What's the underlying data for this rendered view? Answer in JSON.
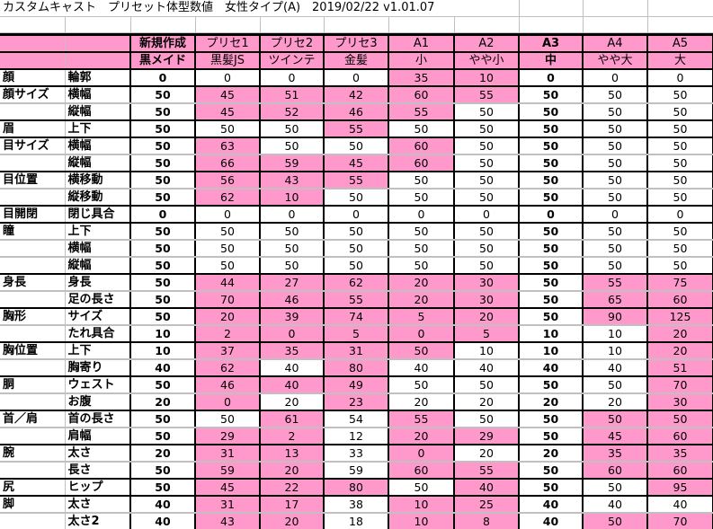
{
  "title": "カスタムキャスト　プリセット体型数値　女性タイプ(A)　2019/02/22  v1.01.07",
  "colors": {
    "highlight": "#ff99cc",
    "border": "#000000",
    "grid": "#c0c0c0"
  },
  "header": {
    "top": [
      "新規作成",
      "プリセ1",
      "プリセ2",
      "プリセ3",
      "A1",
      "A2",
      "A3",
      "A4",
      "A5"
    ],
    "sub": [
      "黒メイド",
      "黒髪JS",
      "ツインテ",
      "金髪",
      "小",
      "やや小",
      "中",
      "やや大",
      "大"
    ]
  },
  "rows": [
    {
      "group": "顔",
      "label": "輪郭",
      "values": [
        "0",
        "0",
        "0",
        "0",
        "35",
        "10",
        "0",
        "0",
        "0"
      ],
      "highlighted": [
        4,
        5
      ]
    },
    {
      "group": "顔サイズ",
      "label": "横幅",
      "values": [
        "50",
        "45",
        "51",
        "42",
        "60",
        "55",
        "50",
        "50",
        "50"
      ],
      "highlighted": [
        1,
        2,
        3,
        4,
        5
      ]
    },
    {
      "group": "",
      "label": "縦幅",
      "values": [
        "50",
        "45",
        "52",
        "46",
        "55",
        "50",
        "50",
        "50",
        "50"
      ],
      "highlighted": [
        1,
        2,
        3,
        4
      ]
    },
    {
      "group": "眉",
      "label": "上下",
      "values": [
        "50",
        "50",
        "50",
        "55",
        "50",
        "50",
        "50",
        "50",
        "50"
      ],
      "highlighted": [
        3
      ]
    },
    {
      "group": "目サイズ",
      "label": "横幅",
      "values": [
        "50",
        "63",
        "50",
        "50",
        "60",
        "50",
        "50",
        "50",
        "50"
      ],
      "highlighted": [
        1,
        4
      ]
    },
    {
      "group": "",
      "label": "縦幅",
      "values": [
        "50",
        "66",
        "59",
        "45",
        "60",
        "50",
        "50",
        "50",
        "50"
      ],
      "highlighted": [
        1,
        2,
        3,
        4
      ]
    },
    {
      "group": "目位置",
      "label": "横移動",
      "values": [
        "50",
        "56",
        "43",
        "55",
        "50",
        "50",
        "50",
        "50",
        "50"
      ],
      "highlighted": [
        1,
        2,
        3
      ]
    },
    {
      "group": "",
      "label": "縦移動",
      "values": [
        "50",
        "62",
        "10",
        "50",
        "50",
        "50",
        "50",
        "50",
        "50"
      ],
      "highlighted": [
        1,
        2
      ]
    },
    {
      "group": "目開閉",
      "label": "閉じ具合",
      "values": [
        "0",
        "0",
        "0",
        "0",
        "0",
        "0",
        "0",
        "0",
        "0"
      ],
      "highlighted": []
    },
    {
      "group": "瞳",
      "label": "上下",
      "values": [
        "50",
        "50",
        "50",
        "50",
        "50",
        "50",
        "50",
        "50",
        "50"
      ],
      "highlighted": []
    },
    {
      "group": "",
      "label": "横幅",
      "values": [
        "50",
        "50",
        "50",
        "50",
        "50",
        "50",
        "50",
        "50",
        "50"
      ],
      "highlighted": []
    },
    {
      "group": "",
      "label": "縦幅",
      "values": [
        "50",
        "50",
        "50",
        "50",
        "50",
        "50",
        "50",
        "50",
        "50"
      ],
      "highlighted": []
    },
    {
      "group": "身長",
      "label": "身長",
      "values": [
        "50",
        "44",
        "27",
        "62",
        "20",
        "30",
        "50",
        "55",
        "75"
      ],
      "highlighted": [
        1,
        2,
        3,
        4,
        5,
        7,
        8
      ]
    },
    {
      "group": "",
      "label": "足の長さ",
      "values": [
        "50",
        "70",
        "46",
        "55",
        "20",
        "30",
        "50",
        "65",
        "60"
      ],
      "highlighted": [
        1,
        2,
        3,
        4,
        5,
        7,
        8
      ]
    },
    {
      "group": "胸形",
      "label": "サイズ",
      "values": [
        "50",
        "20",
        "39",
        "74",
        "5",
        "20",
        "50",
        "90",
        "125"
      ],
      "highlighted": [
        1,
        2,
        3,
        4,
        5,
        7,
        8
      ]
    },
    {
      "group": "",
      "label": "たれ具合",
      "values": [
        "10",
        "2",
        "0",
        "5",
        "0",
        "5",
        "10",
        "10",
        "20"
      ],
      "highlighted": [
        1,
        2,
        3,
        4,
        5,
        8
      ]
    },
    {
      "group": "胸位置",
      "label": "上下",
      "values": [
        "10",
        "37",
        "35",
        "31",
        "50",
        "10",
        "10",
        "10",
        "20"
      ],
      "highlighted": [
        1,
        2,
        3,
        4,
        8
      ]
    },
    {
      "group": "",
      "label": "胸寄り",
      "values": [
        "40",
        "62",
        "40",
        "80",
        "40",
        "40",
        "40",
        "40",
        "51"
      ],
      "highlighted": [
        1,
        3,
        8
      ]
    },
    {
      "group": "胴",
      "label": "ウェスト",
      "values": [
        "50",
        "46",
        "40",
        "49",
        "50",
        "50",
        "50",
        "50",
        "70"
      ],
      "highlighted": [
        1,
        2,
        3,
        8
      ]
    },
    {
      "group": "",
      "label": "お腹",
      "values": [
        "20",
        "0",
        "20",
        "23",
        "20",
        "20",
        "20",
        "20",
        "30"
      ],
      "highlighted": [
        1,
        3,
        8
      ]
    },
    {
      "group": "首／肩",
      "label": "首の長さ",
      "values": [
        "50",
        "50",
        "61",
        "54",
        "55",
        "50",
        "50",
        "50",
        "50"
      ],
      "highlighted": [
        2,
        4,
        7,
        8
      ]
    },
    {
      "group": "",
      "label": "肩幅",
      "values": [
        "50",
        "29",
        "2",
        "12",
        "20",
        "29",
        "50",
        "45",
        "60"
      ],
      "highlighted": [
        1,
        2,
        4,
        5,
        7,
        8
      ]
    },
    {
      "group": "腕",
      "label": "太さ",
      "values": [
        "20",
        "31",
        "13",
        "33",
        "0",
        "20",
        "20",
        "35",
        "35"
      ],
      "highlighted": [
        1,
        2,
        4,
        7,
        8
      ]
    },
    {
      "group": "",
      "label": "長さ",
      "values": [
        "50",
        "59",
        "20",
        "59",
        "60",
        "55",
        "50",
        "60",
        "60"
      ],
      "highlighted": [
        1,
        2,
        4,
        5,
        7,
        8
      ]
    },
    {
      "group": "尻",
      "label": "ヒップ",
      "values": [
        "50",
        "45",
        "22",
        "80",
        "50",
        "40",
        "50",
        "50",
        "95"
      ],
      "highlighted": [
        1,
        2,
        3,
        5,
        8
      ]
    },
    {
      "group": "脚",
      "label": "太さ",
      "values": [
        "40",
        "31",
        "17",
        "38",
        "10",
        "25",
        "40",
        "40",
        "40"
      ],
      "highlighted": [
        1,
        2,
        4,
        5
      ]
    },
    {
      "group": "",
      "label": "太さ2",
      "values": [
        "40",
        "43",
        "20",
        "18",
        "10",
        "8",
        "40",
        "50",
        "70"
      ],
      "highlighted": [
        1,
        2,
        4,
        5,
        7,
        8
      ]
    }
  ]
}
